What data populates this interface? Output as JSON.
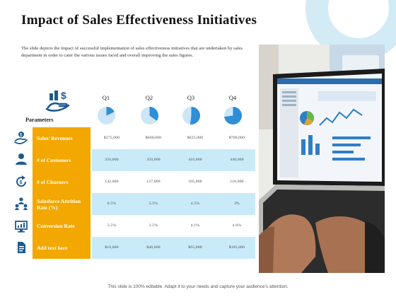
{
  "title": "Impact of Sales Effectiveness Initiatives",
  "description": "The slide depicts the impact of successful implementation of sales effectiveness initiatives that are undertaken by sales department in order to cater the various issues faced and overall improving the sales figures.",
  "parameters_label": "Parameters",
  "quarters": [
    {
      "label": "Q1",
      "pie_fraction": 0.18
    },
    {
      "label": "Q2",
      "pie_fraction": 0.35
    },
    {
      "label": "Q3",
      "pie_fraction": 0.52
    },
    {
      "label": "Q4",
      "pie_fraction": 0.73
    }
  ],
  "rows": [
    {
      "label": "Sales/ Revenues",
      "icon": "money-hand-icon",
      "values": [
        "$275,000",
        "$600,000",
        "$625,000",
        "$700,000"
      ]
    },
    {
      "label": "# of Customers",
      "icon": "customer-icon",
      "values": [
        "250,000",
        "350,000",
        "410,000",
        "440,000"
      ]
    },
    {
      "label": "# of Churners",
      "icon": "churn-cycle-icon",
      "values": [
        "142,000",
        "127,000",
        "105,000",
        "118,000"
      ]
    },
    {
      "label": "Salesforce Attrition Rate (%)",
      "icon": "team-hierarchy-icon",
      "values": [
        "6.5%",
        "5.5%",
        "4.5%",
        "3%"
      ]
    },
    {
      "label": "Conversion Rate",
      "icon": "monitor-chart-icon",
      "values": [
        "5.5%",
        "2.5%",
        "4.1%",
        "4.6%"
      ]
    },
    {
      "label": "Add text here",
      "icon": "document-icon",
      "values": [
        "$10,000",
        "$40,000",
        "$65,000",
        "$105,000"
      ]
    }
  ],
  "footer": "This slide is 100% editable. Adapt it to your needs and capture your audience's attention.",
  "colors": {
    "label_fill": "#f2a800",
    "row_highlight": "#c9ebf9",
    "pie_fill": "#2e8ed6",
    "pie_bg": "#cce6f7",
    "icon": "#1e5a8f"
  }
}
